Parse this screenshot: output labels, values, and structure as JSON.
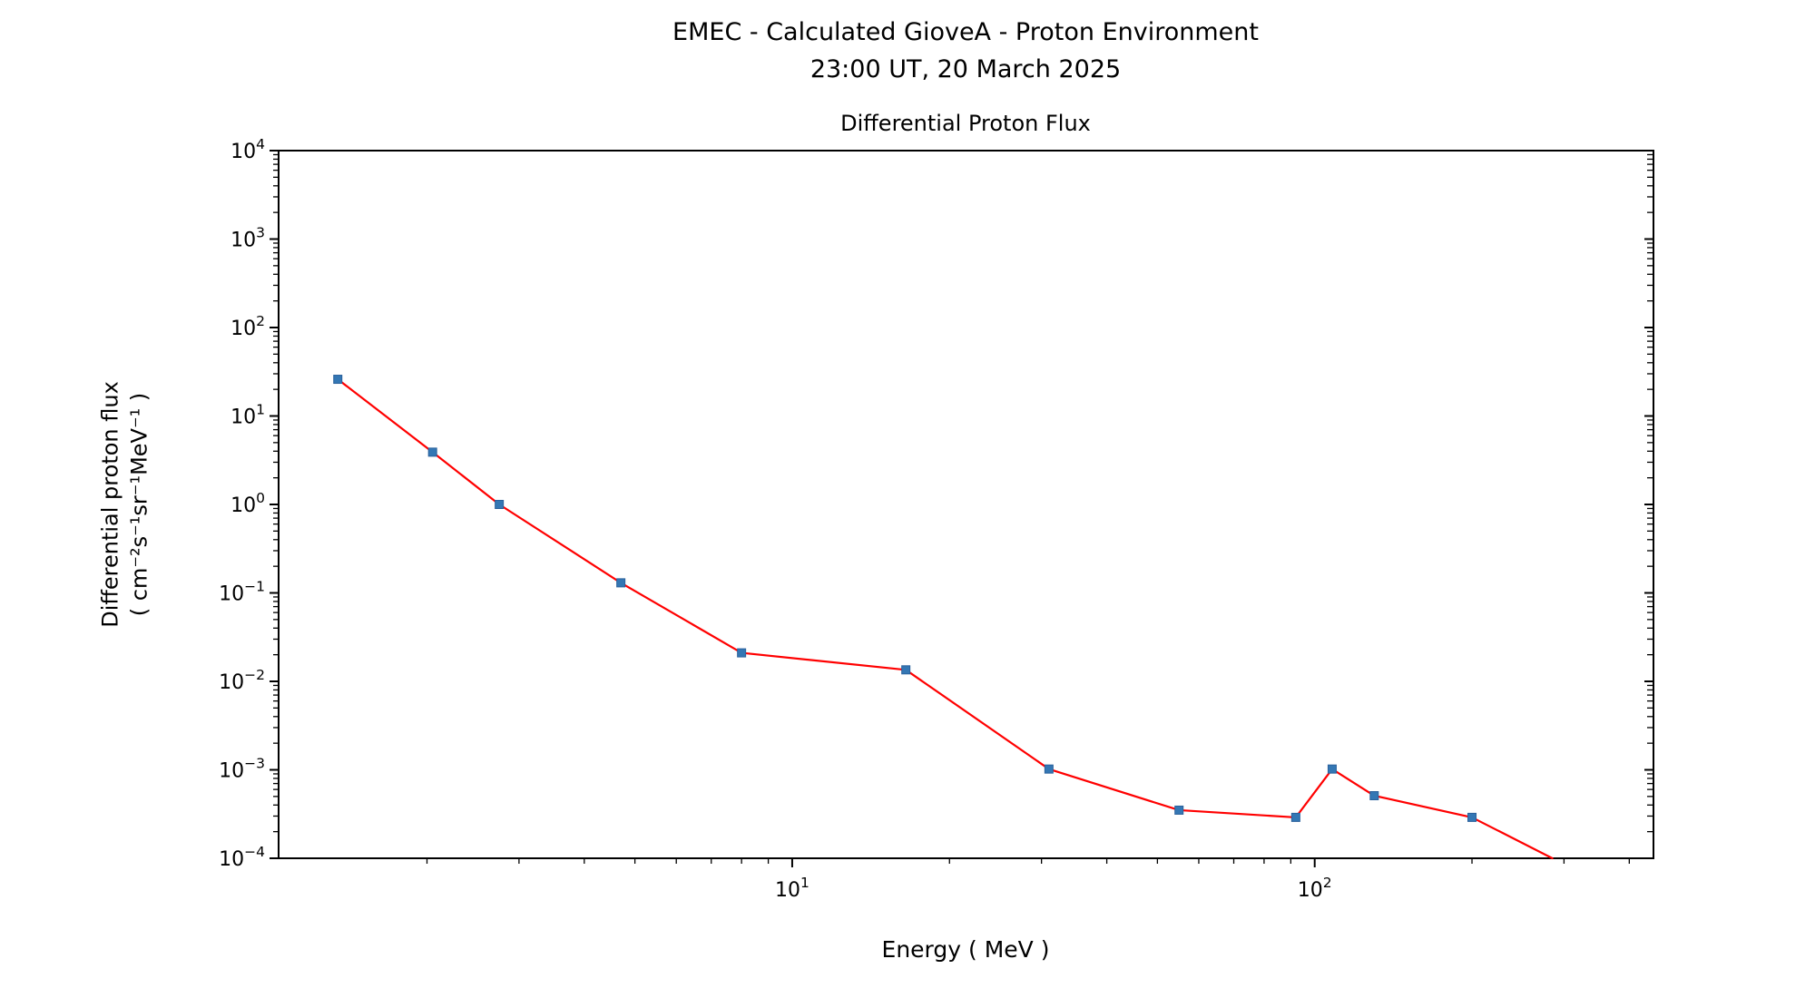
{
  "chart_data": {
    "type": "line",
    "suptitle_line1": "EMEC - Calculated GioveA - Proton Environment",
    "suptitle_line2": "23:00 UT, 20 March 2025",
    "title": "Differential Proton Flux",
    "xlabel": "Energy ( MeV )",
    "ylabel_line1": "Differential proton flux",
    "ylabel_line2": "( cm⁻²s⁻¹sr⁻¹MeV⁻¹ )",
    "x_scale": "log",
    "y_scale": "log",
    "xlim": [
      1.04,
      445
    ],
    "ylim": [
      0.0001,
      10000.0
    ],
    "x_major_ticks": [
      10,
      100
    ],
    "y_major_tick_exponents": [
      4,
      3,
      2,
      1,
      0,
      -1,
      -2,
      -3,
      -4
    ],
    "grid": false,
    "legend": "none",
    "line_color": "#ff0000",
    "marker_color": "#3477b4",
    "marker_edge_color": "#2a619c",
    "marker_shape": "square",
    "last_point_has_marker": false,
    "series": [
      {
        "name": "differential-proton-flux",
        "x": [
          1.35,
          2.05,
          2.75,
          4.7,
          8.0,
          16.5,
          31,
          55,
          92,
          108,
          130,
          200,
          285
        ],
        "y": [
          26,
          3.9,
          1.0,
          0.13,
          0.021,
          0.0135,
          0.00102,
          0.00035,
          0.00029,
          0.00102,
          0.00051,
          0.00029,
          0.0001
        ]
      }
    ]
  }
}
